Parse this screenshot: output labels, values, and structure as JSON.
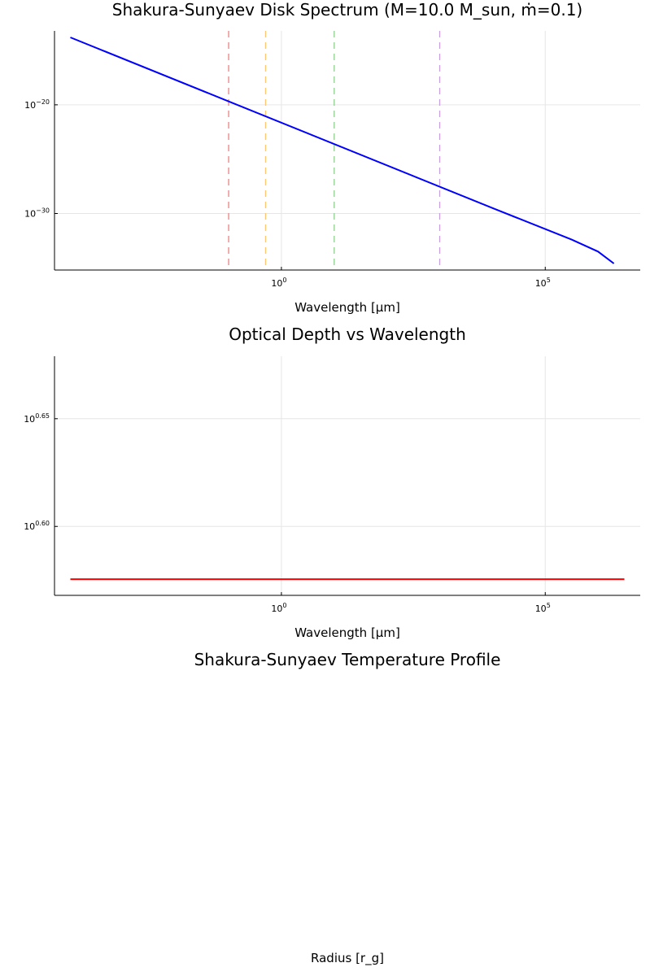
{
  "chart_data": [
    {
      "type": "line",
      "title": "Shakura-Sunyaev Disk Spectrum (M=10.0 M_sun, ṁ=0.1)",
      "xlabel": "Wavelength [μm]",
      "ylabel": "",
      "x_scale": "log10",
      "y_scale": "log10",
      "xlim": [
        -4.3,
        6.8
      ],
      "ylim": [
        -35.2,
        -13.2
      ],
      "x_ticks": [
        {
          "base": "10",
          "exp": "0",
          "value": 0
        },
        {
          "base": "10",
          "exp": "5",
          "value": 5
        }
      ],
      "y_ticks": [
        {
          "base": "10",
          "exp": "−30",
          "value": -30
        },
        {
          "base": "10",
          "exp": "−20",
          "value": -20
        }
      ],
      "grid": true,
      "legend": "none",
      "series": [
        {
          "color": "#0000ff",
          "x": [
            -4,
            4,
            5.5,
            6.0,
            6.3
          ],
          "y": [
            -13.8,
            -29.5,
            -32.4,
            -33.5,
            -34.6
          ]
        }
      ],
      "vlines": [
        {
          "x": -1.0,
          "color": "#f08080"
        },
        {
          "x": -0.3,
          "color": "#ffc870"
        },
        {
          "x": 1.0,
          "color": "#90d090"
        },
        {
          "x": 3.0,
          "color": "#c8a0e0"
        }
      ]
    },
    {
      "type": "line",
      "title": "Optical Depth vs Wavelength",
      "xlabel": "Wavelength [μm]",
      "ylabel": "",
      "x_scale": "log10",
      "y_scale": "log10",
      "xlim": [
        -4.3,
        6.8
      ],
      "ylim": [
        0.568,
        0.679
      ],
      "x_ticks": [
        {
          "base": "10",
          "exp": "0",
          "value": 0
        },
        {
          "base": "10",
          "exp": "5",
          "value": 5
        }
      ],
      "y_ticks": [
        {
          "base": "10",
          "exp": "0.60",
          "value": 0.6
        },
        {
          "base": "10",
          "exp": "0.65",
          "value": 0.65
        }
      ],
      "grid": true,
      "legend": "none",
      "series": [
        {
          "color": "#ff0000",
          "x": [
            -4,
            6.5
          ],
          "y": [
            0.5755,
            0.5755
          ]
        }
      ]
    },
    {
      "type": "line",
      "title": "Shakura-Sunyaev Temperature Profile",
      "xlabel": "Radius [r_g]",
      "ylabel": "",
      "series": []
    }
  ]
}
